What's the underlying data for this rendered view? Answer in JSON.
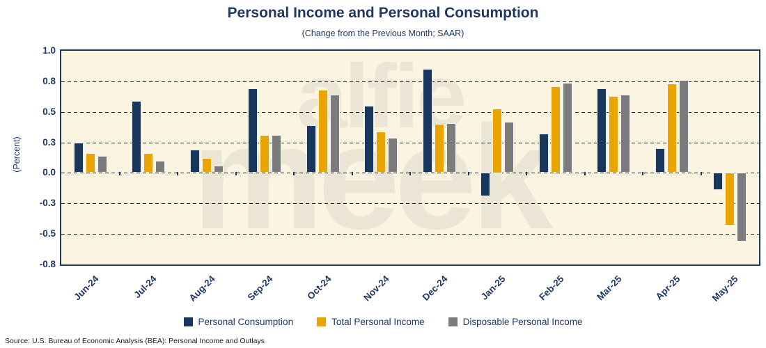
{
  "title": "Personal Income and Personal Consumption",
  "subtitle": "(Change from the Previous Month; SAAR)",
  "source": "Source: U.S. Bureau of Economic Analysis (BEA): Personal Income and Outlays",
  "watermark": {
    "line1": "alfie",
    "line2": "meek"
  },
  "y_axis": {
    "label": "(Percent)",
    "tick_labels": [
      "1.0",
      "0.8",
      "0.5",
      "0.3",
      "0.0",
      "-0.3",
      "-0.5",
      "-0.8"
    ],
    "tick_values": [
      1.0,
      0.75,
      0.5,
      0.25,
      0.0,
      -0.25,
      -0.5,
      -0.75
    ]
  },
  "colors": {
    "navy": "#17375D",
    "gold": "#EAA400",
    "gray": "#7C7C7C",
    "plot_background": "#FAF4E0",
    "text_navy": "#1F3864",
    "watermark": "#EAE5D5"
  },
  "chart_data": {
    "type": "bar",
    "title": "Personal Income and Personal Consumption",
    "subtitle": "(Change from the Previous Month; SAAR)",
    "xlabel": "",
    "ylabel": "(Percent)",
    "ylim": [
      -0.75,
      1.0
    ],
    "grid": "horizontal-dashed",
    "legend_position": "bottom",
    "categories": [
      "Jun-24",
      "Jul-24",
      "Aug-24",
      "Sep-24",
      "Oct-24",
      "Nov-24",
      "Dec-24",
      "Jan-25",
      "Feb-25",
      "Mar-25",
      "Apr-25",
      "May-25"
    ],
    "series": [
      {
        "name": "Personal Consumption",
        "color": "#17375D",
        "values": [
          0.25,
          0.59,
          0.19,
          0.69,
          0.39,
          0.55,
          0.85,
          -0.19,
          0.32,
          0.69,
          0.2,
          -0.14
        ]
      },
      {
        "name": "Total Personal Income",
        "color": "#EAA400",
        "values": [
          0.16,
          0.16,
          0.12,
          0.31,
          0.68,
          0.34,
          0.4,
          0.53,
          0.71,
          0.63,
          0.73,
          -0.43
        ]
      },
      {
        "name": "Disposable Personal Income",
        "color": "#7C7C7C",
        "values": [
          0.14,
          0.1,
          0.06,
          0.31,
          0.64,
          0.29,
          0.41,
          0.42,
          0.74,
          0.64,
          0.76,
          -0.56
        ]
      }
    ]
  }
}
